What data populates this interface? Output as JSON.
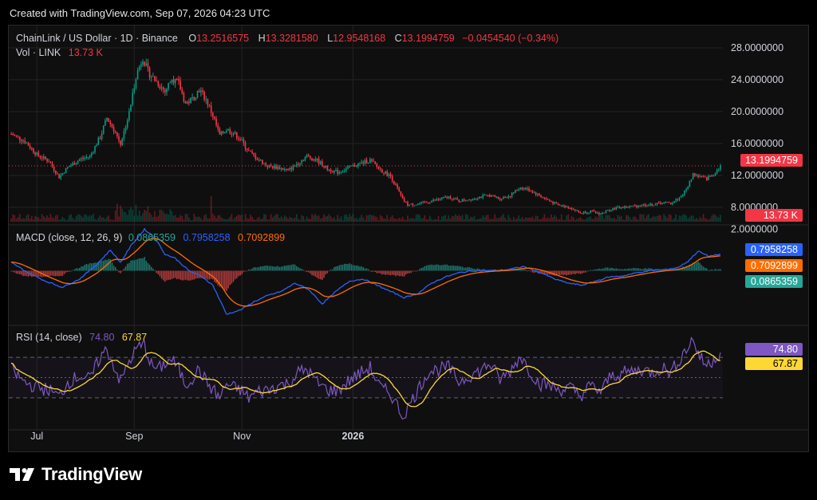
{
  "header": {
    "created_text": "Created with TradingView.com, Sep 07, 2026 04:23 UTC"
  },
  "legend": {
    "symbol": "ChainLink / US Dollar · 1D · Binance",
    "o_label": "O",
    "o_value": "13.2516575",
    "h_label": "H",
    "h_value": "13.3281580",
    "l_label": "L",
    "l_value": "12.9548168",
    "c_label": "C",
    "c_value": "13.1994759",
    "change": "−0.0454540 (−0.34%)",
    "vol_label": "Vol · LINK",
    "vol_value": "13.73 K",
    "macd_label": "MACD (close, 12, 26, 9)",
    "macd_hist": "0.0865359",
    "macd_line": "0.7958258",
    "macd_signal": "0.7092899",
    "rsi_label": "RSI (14, close)",
    "rsi_value": "74.80",
    "rsi_ma": "67.87"
  },
  "tags": {
    "price": "13.1994759",
    "volume": "13.73 K",
    "macd_line": "0.7958258",
    "macd_signal": "0.7092899",
    "macd_hist": "0.0865359",
    "rsi": "74.80",
    "rsi_ma": "67.87"
  },
  "colors": {
    "up": "#089981",
    "down": "#f23645",
    "macd": "#2962ff",
    "signal": "#ff6d00",
    "rsi": "#7e57c2",
    "rsi_ma": "#fdd835",
    "grid": "#232323"
  },
  "logo_text": "TradingView",
  "chart_data": [
    {
      "type": "candlestick",
      "title": "ChainLink / US Dollar · 1D · Binance",
      "price_axis_ticks": [
        "28.0000000",
        "24.0000000",
        "20.0000000",
        "16.0000000",
        "12.0000000",
        "8.0000000"
      ],
      "price_ticks_values": [
        28,
        24,
        20,
        16,
        12,
        8
      ],
      "ylim": [
        6.2,
        30
      ],
      "time_axis_ticks": [
        "Jul",
        "Sep",
        "Nov",
        "2026"
      ],
      "time_ticks_index": [
        15,
        72,
        135,
        200
      ],
      "last_price": 13.1994759,
      "anchors": [
        [
          0,
          17.2
        ],
        [
          8,
          16.3
        ],
        [
          15,
          14.6
        ],
        [
          22,
          13.8
        ],
        [
          28,
          11.8
        ],
        [
          33,
          13.0
        ],
        [
          40,
          14.0
        ],
        [
          46,
          14.4
        ],
        [
          52,
          16.8
        ],
        [
          56,
          19.2
        ],
        [
          60,
          17.8
        ],
        [
          64,
          16.0
        ],
        [
          69,
          19.8
        ],
        [
          73,
          24.5
        ],
        [
          77,
          26.8
        ],
        [
          80,
          25.0
        ],
        [
          85,
          23.8
        ],
        [
          90,
          22.5
        ],
        [
          94,
          24.2
        ],
        [
          98,
          23.5
        ],
        [
          102,
          21.0
        ],
        [
          106,
          21.6
        ],
        [
          110,
          22.8
        ],
        [
          114,
          21.5
        ],
        [
          118,
          19.5
        ],
        [
          122,
          17.0
        ],
        [
          126,
          17.8
        ],
        [
          130,
          17.3
        ],
        [
          134,
          16.6
        ],
        [
          139,
          15.0
        ],
        [
          144,
          14.1
        ],
        [
          150,
          13.2
        ],
        [
          156,
          13.0
        ],
        [
          162,
          12.6
        ],
        [
          168,
          13.6
        ],
        [
          173,
          14.4
        ],
        [
          179,
          13.9
        ],
        [
          185,
          12.8
        ],
        [
          191,
          12.4
        ],
        [
          197,
          12.9
        ],
        [
          204,
          13.5
        ],
        [
          210,
          13.9
        ],
        [
          216,
          12.7
        ],
        [
          222,
          11.9
        ],
        [
          226,
          10.3
        ],
        [
          229,
          9.0
        ],
        [
          232,
          8.3
        ],
        [
          238,
          8.4
        ],
        [
          244,
          8.7
        ],
        [
          250,
          9.0
        ],
        [
          256,
          9.3
        ],
        [
          262,
          8.8
        ],
        [
          268,
          9.0
        ],
        [
          274,
          9.3
        ],
        [
          280,
          9.5
        ],
        [
          286,
          9.1
        ],
        [
          292,
          9.5
        ],
        [
          298,
          10.5
        ],
        [
          303,
          10.2
        ],
        [
          309,
          9.5
        ],
        [
          315,
          8.8
        ],
        [
          321,
          8.2
        ],
        [
          327,
          8.0
        ],
        [
          333,
          7.3
        ],
        [
          339,
          7.5
        ],
        [
          345,
          7.2
        ],
        [
          351,
          7.8
        ],
        [
          357,
          8.0
        ],
        [
          363,
          8.1
        ],
        [
          369,
          8.3
        ],
        [
          375,
          8.3
        ],
        [
          381,
          8.6
        ],
        [
          386,
          8.5
        ],
        [
          391,
          9.2
        ],
        [
          395,
          10.2
        ],
        [
          399,
          12.2
        ],
        [
          403,
          11.8
        ],
        [
          407,
          11.6
        ],
        [
          411,
          12.2
        ],
        [
          415,
          13.2
        ]
      ],
      "volume_last": "13.73 K"
    },
    {
      "type": "line",
      "title": "MACD (close, 12, 26, 9)",
      "price_axis_ticks": [
        "2.0000000"
      ],
      "ylim": [
        -2.6,
        2.1
      ],
      "series": [
        {
          "name": "MACD",
          "color": "#2962ff",
          "last": 0.7958258
        },
        {
          "name": "Signal",
          "color": "#ff6d00",
          "last": 0.7092899
        },
        {
          "name": "Histogram",
          "type": "bar",
          "last": 0.0865359
        }
      ],
      "macd_anchors": [
        [
          0,
          0.4
        ],
        [
          10,
          -0.1
        ],
        [
          20,
          -0.5
        ],
        [
          30,
          -0.8
        ],
        [
          40,
          -0.4
        ],
        [
          50,
          0.3
        ],
        [
          58,
          1.0
        ],
        [
          64,
          0.4
        ],
        [
          70,
          1.2
        ],
        [
          78,
          2.0
        ],
        [
          84,
          1.6
        ],
        [
          90,
          0.8
        ],
        [
          96,
          0.6
        ],
        [
          104,
          0.0
        ],
        [
          112,
          -0.3
        ],
        [
          118,
          -0.7
        ],
        [
          126,
          -2.1
        ],
        [
          134,
          -1.9
        ],
        [
          142,
          -1.5
        ],
        [
          150,
          -1.2
        ],
        [
          158,
          -1.0
        ],
        [
          166,
          -0.6
        ],
        [
          174,
          -0.9
        ],
        [
          182,
          -1.6
        ],
        [
          190,
          -1.0
        ],
        [
          198,
          -0.5
        ],
        [
          206,
          -0.4
        ],
        [
          214,
          -0.7
        ],
        [
          222,
          -1.0
        ],
        [
          230,
          -1.3
        ],
        [
          238,
          -1.1
        ],
        [
          246,
          -0.6
        ],
        [
          254,
          -0.3
        ],
        [
          262,
          -0.1
        ],
        [
          270,
          0.0
        ],
        [
          280,
          0.0
        ],
        [
          290,
          0.05
        ],
        [
          300,
          0.2
        ],
        [
          310,
          -0.1
        ],
        [
          318,
          -0.4
        ],
        [
          326,
          -0.6
        ],
        [
          334,
          -0.7
        ],
        [
          342,
          -0.5
        ],
        [
          350,
          -0.3
        ],
        [
          358,
          -0.25
        ],
        [
          366,
          -0.1
        ],
        [
          374,
          0.0
        ],
        [
          382,
          0.05
        ],
        [
          390,
          0.15
        ],
        [
          396,
          0.45
        ],
        [
          402,
          0.95
        ],
        [
          408,
          0.7
        ],
        [
          415,
          0.8
        ]
      ]
    },
    {
      "type": "line",
      "title": "RSI (14, close)",
      "ylim": [
        0,
        100
      ],
      "bands": [
        70,
        50,
        30
      ],
      "series": [
        {
          "name": "RSI",
          "color": "#7e57c2",
          "last": 74.8
        },
        {
          "name": "RSI-based MA",
          "color": "#fdd835",
          "last": 67.87
        }
      ],
      "rsi_anchors": [
        [
          0,
          58
        ],
        [
          8,
          45
        ],
        [
          16,
          40
        ],
        [
          22,
          38
        ],
        [
          28,
          31
        ],
        [
          33,
          45
        ],
        [
          40,
          52
        ],
        [
          46,
          48
        ],
        [
          52,
          70
        ],
        [
          56,
          78
        ],
        [
          60,
          62
        ],
        [
          64,
          46
        ],
        [
          69,
          66
        ],
        [
          74,
          80
        ],
        [
          78,
          82
        ],
        [
          82,
          62
        ],
        [
          86,
          58
        ],
        [
          90,
          64
        ],
        [
          94,
          68
        ],
        [
          98,
          58
        ],
        [
          102,
          43
        ],
        [
          106,
          50
        ],
        [
          110,
          58
        ],
        [
          114,
          46
        ],
        [
          118,
          38
        ],
        [
          122,
          30
        ],
        [
          126,
          44
        ],
        [
          130,
          40
        ],
        [
          134,
          38
        ],
        [
          139,
          30
        ],
        [
          144,
          36
        ],
        [
          150,
          38
        ],
        [
          156,
          42
        ],
        [
          162,
          44
        ],
        [
          168,
          55
        ],
        [
          173,
          58
        ],
        [
          179,
          45
        ],
        [
          185,
          38
        ],
        [
          191,
          37
        ],
        [
          197,
          46
        ],
        [
          204,
          54
        ],
        [
          210,
          60
        ],
        [
          216,
          40
        ],
        [
          222,
          34
        ],
        [
          226,
          22
        ],
        [
          229,
          12
        ],
        [
          232,
          20
        ],
        [
          238,
          38
        ],
        [
          244,
          56
        ],
        [
          250,
          58
        ],
        [
          256,
          60
        ],
        [
          262,
          46
        ],
        [
          268,
          52
        ],
        [
          274,
          56
        ],
        [
          280,
          64
        ],
        [
          286,
          48
        ],
        [
          292,
          56
        ],
        [
          298,
          72
        ],
        [
          303,
          58
        ],
        [
          309,
          44
        ],
        [
          315,
          42
        ],
        [
          321,
          38
        ],
        [
          327,
          40
        ],
        [
          333,
          32
        ],
        [
          339,
          42
        ],
        [
          345,
          36
        ],
        [
          351,
          52
        ],
        [
          357,
          54
        ],
        [
          363,
          56
        ],
        [
          369,
          58
        ],
        [
          375,
          55
        ],
        [
          381,
          60
        ],
        [
          386,
          55
        ],
        [
          391,
          68
        ],
        [
          395,
          78
        ],
        [
          399,
          88
        ],
        [
          403,
          70
        ],
        [
          407,
          62
        ],
        [
          411,
          68
        ],
        [
          415,
          75
        ]
      ]
    }
  ]
}
